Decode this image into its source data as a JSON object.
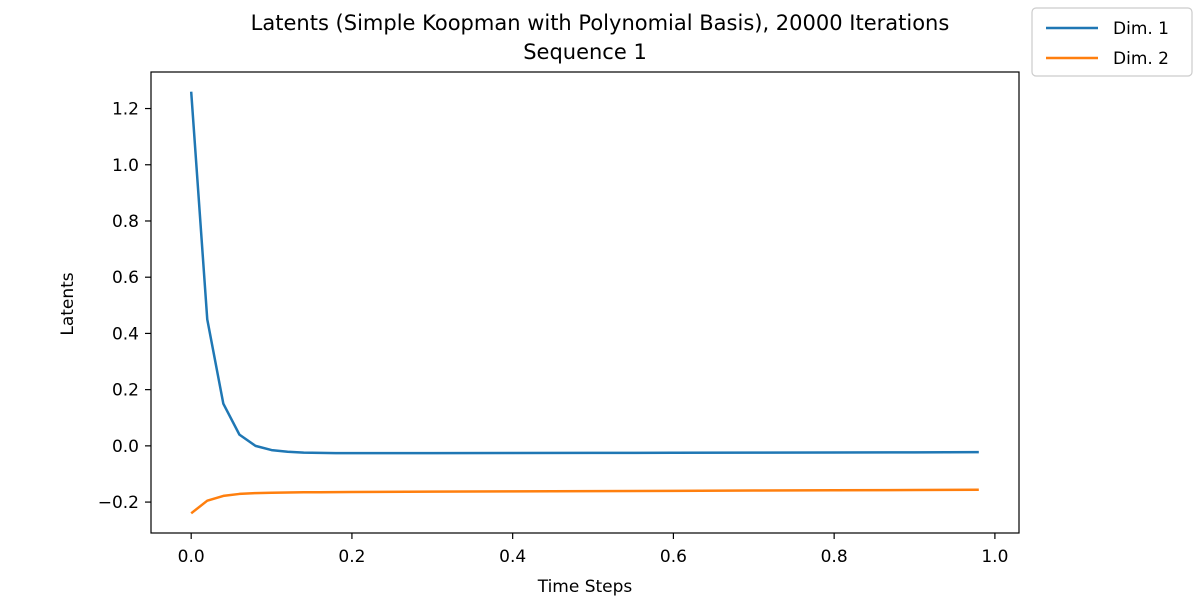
{
  "chart_data": {
    "type": "line",
    "title": "Latents (Simple Koopman with Polynomial Basis), 20000 Iterations",
    "subtitle": "Sequence 1",
    "xlabel": "Time Steps",
    "ylabel": "Latents",
    "xlim": [
      -0.05,
      1.03
    ],
    "ylim": [
      -0.31,
      1.33
    ],
    "xticks": [
      0.0,
      0.2,
      0.4,
      0.6,
      0.8,
      1.0
    ],
    "xtick_labels": [
      "0.0",
      "0.2",
      "0.4",
      "0.6",
      "0.8",
      "1.0"
    ],
    "yticks": [
      -0.2,
      0.0,
      0.2,
      0.4,
      0.6,
      0.8,
      1.0,
      1.2
    ],
    "ytick_labels": [
      "−0.2",
      "0.0",
      "0.2",
      "0.4",
      "0.6",
      "0.8",
      "1.0",
      "1.2"
    ],
    "grid": false,
    "legend_position": "outside-top-right",
    "series": [
      {
        "name": "Dim. 1",
        "color": "#1f77b4",
        "x": [
          0.0,
          0.02,
          0.04,
          0.06,
          0.08,
          0.1,
          0.12,
          0.14,
          0.16,
          0.18,
          0.2,
          0.3,
          0.4,
          0.5,
          0.6,
          0.7,
          0.8,
          0.9,
          0.98
        ],
        "y": [
          1.26,
          0.45,
          0.15,
          0.04,
          0.0,
          -0.015,
          -0.021,
          -0.024,
          -0.025,
          -0.026,
          -0.026,
          -0.026,
          -0.0255,
          -0.025,
          -0.0245,
          -0.024,
          -0.0235,
          -0.023,
          -0.0225
        ]
      },
      {
        "name": "Dim. 2",
        "color": "#ff7f0e",
        "x": [
          0.0,
          0.02,
          0.04,
          0.06,
          0.08,
          0.1,
          0.12,
          0.14,
          0.16,
          0.2,
          0.3,
          0.4,
          0.5,
          0.6,
          0.7,
          0.8,
          0.9,
          0.98
        ],
        "y": [
          -0.24,
          -0.195,
          -0.178,
          -0.171,
          -0.168,
          -0.167,
          -0.166,
          -0.165,
          -0.165,
          -0.164,
          -0.163,
          -0.162,
          -0.161,
          -0.16,
          -0.159,
          -0.158,
          -0.157,
          -0.156
        ]
      }
    ]
  }
}
